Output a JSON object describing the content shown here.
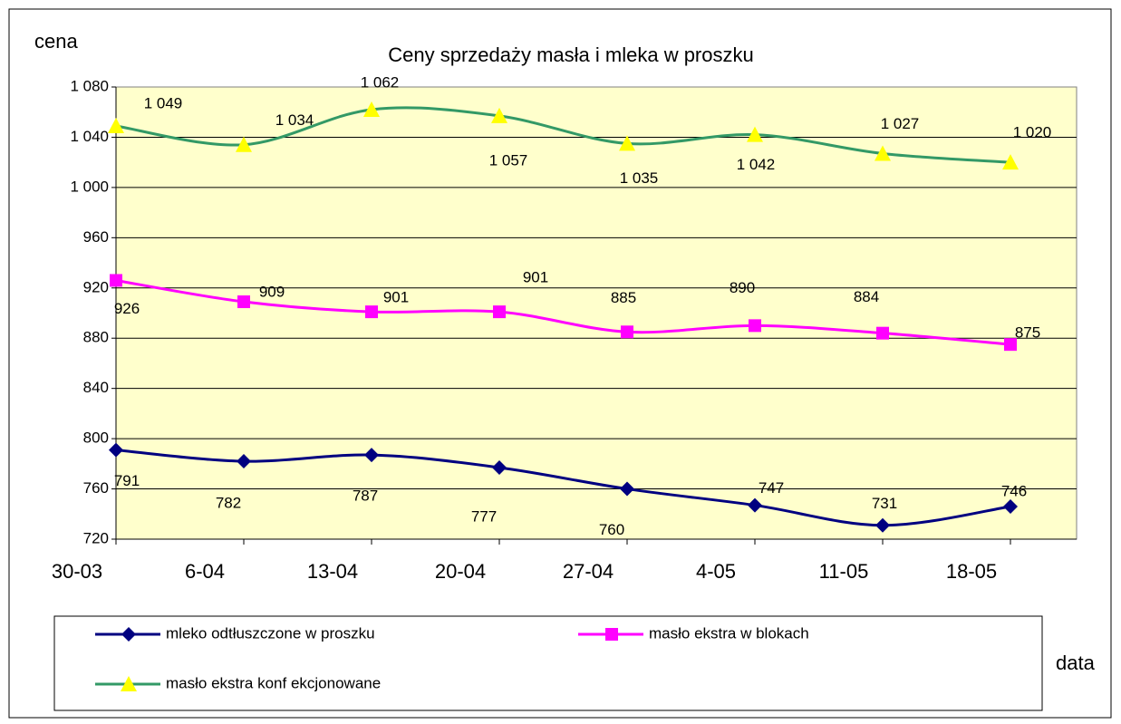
{
  "chart_data": {
    "type": "line",
    "title": "Ceny sprzedaży masła i mleka w  proszku",
    "y_label": "cena",
    "x_label": "data",
    "categories": [
      "30-03",
      "6-04",
      "13-04",
      "20-04",
      "27-04",
      "4-05",
      "11-05",
      "18-05"
    ],
    "ylim": [
      720,
      1080
    ],
    "yticks": [
      720,
      760,
      800,
      840,
      880,
      920,
      960,
      {
        "value": 1000,
        "label": "1 000"
      },
      {
        "value": 1040,
        "label": "1 040"
      },
      {
        "value": 1080,
        "label": "1 080"
      }
    ],
    "grid": true,
    "series": [
      {
        "name": "mleko odtłuszczone w proszku",
        "color": "#000080",
        "marker": "diamond",
        "values": [
          791,
          782,
          787,
          777,
          760,
          747,
          731,
          746
        ]
      },
      {
        "name": "masło ekstra w blokach",
        "color": "#ff00ff",
        "marker": "square",
        "values": [
          926,
          909,
          901,
          901,
          885,
          890,
          884,
          875
        ]
      },
      {
        "name": "masło ekstra konf ekcjonowane",
        "color": "#339966",
        "marker": "triangle",
        "marker_color": "#ffff00",
        "values": [
          1049,
          1034,
          1062,
          1057,
          1035,
          1042,
          1027,
          1020
        ],
        "value_labels": [
          "1 049",
          "1 034",
          "1 062",
          "1 057",
          "1 035",
          "1 042",
          "1 027",
          "1 020"
        ]
      }
    ]
  }
}
